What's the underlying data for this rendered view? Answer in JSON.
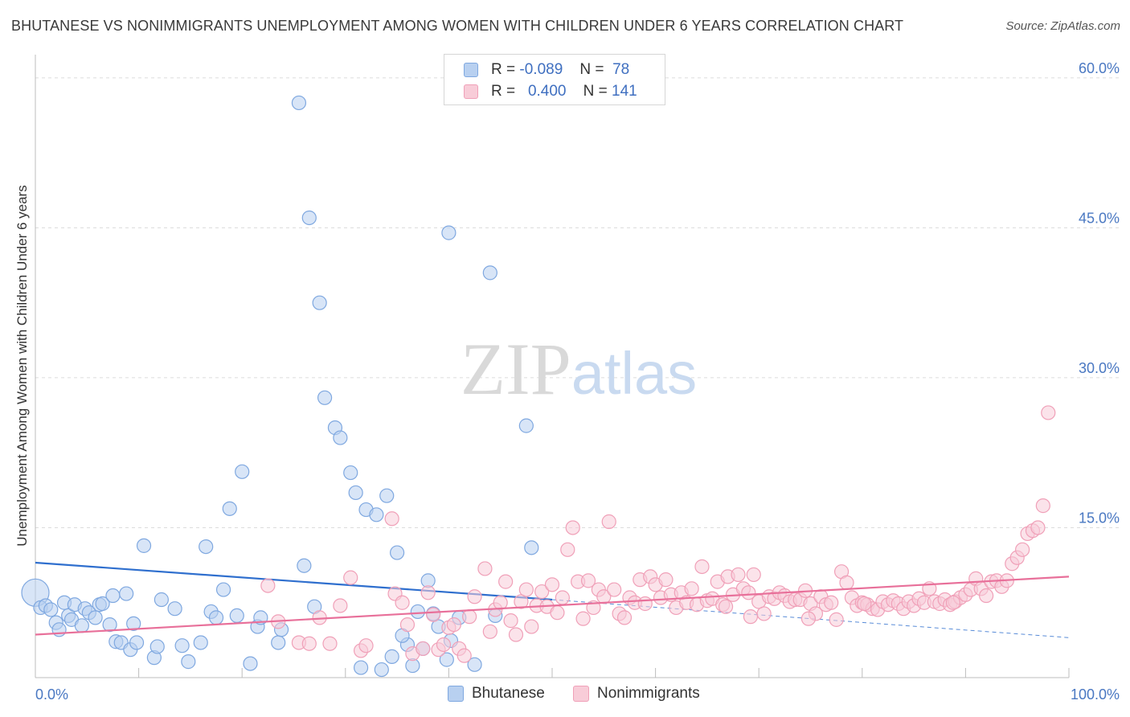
{
  "chart_data": {
    "type": "scatter",
    "title": "BHUTANESE VS NONIMMIGRANTS UNEMPLOYMENT AMONG WOMEN WITH CHILDREN UNDER 6 YEARS CORRELATION CHART",
    "source": "Source: ZipAtlas.com",
    "watermark": "ZIPatlas",
    "ylabel": "Unemployment Among Women with Children Under 6 years",
    "xlim": [
      0,
      100
    ],
    "ylim": [
      0,
      62
    ],
    "x_tick_labels": [
      "0.0%",
      "100.0%"
    ],
    "y_ticks": [
      15,
      30,
      45,
      60
    ],
    "y_tick_labels": [
      "15.0%",
      "30.0%",
      "45.0%",
      "60.0%"
    ],
    "grid": true,
    "legend": {
      "position": "top-center",
      "rows": [
        {
          "r_label": "R =",
          "r_value": "-0.089",
          "n_label": "N =",
          "n_value": "78"
        },
        {
          "r_label": "R =",
          "r_value": "0.400",
          "n_label": "N =",
          "n_value": "141"
        }
      ]
    },
    "series": [
      {
        "name": "Bhutanese",
        "color": "#7fa8e0",
        "fill": "#b8d0f0",
        "line_color": "#2f6fce",
        "trend": {
          "x0": 0,
          "y0": 11.5,
          "x1": 50,
          "y1": 7.8,
          "dash_to_x": 100,
          "dash_to_y": 4.0
        },
        "points": [
          [
            0,
            8.5
          ],
          [
            0.5,
            7.0
          ],
          [
            1.0,
            7.2
          ],
          [
            1.5,
            6.8
          ],
          [
            2.0,
            5.5
          ],
          [
            2.3,
            4.8
          ],
          [
            2.8,
            7.5
          ],
          [
            3.2,
            6.2
          ],
          [
            3.5,
            5.8
          ],
          [
            3.8,
            7.3
          ],
          [
            4.5,
            5.2
          ],
          [
            4.8,
            6.9
          ],
          [
            5.2,
            6.5
          ],
          [
            5.8,
            6.0
          ],
          [
            6.2,
            7.3
          ],
          [
            6.5,
            7.4
          ],
          [
            7.2,
            5.3
          ],
          [
            7.5,
            8.2
          ],
          [
            7.8,
            3.6
          ],
          [
            8.3,
            3.5
          ],
          [
            8.8,
            8.4
          ],
          [
            9.2,
            2.8
          ],
          [
            9.5,
            5.4
          ],
          [
            9.8,
            3.5
          ],
          [
            10.5,
            13.2
          ],
          [
            11.5,
            2.0
          ],
          [
            11.8,
            3.1
          ],
          [
            12.2,
            7.8
          ],
          [
            13.5,
            6.9
          ],
          [
            14.2,
            3.2
          ],
          [
            14.8,
            1.6
          ],
          [
            16.0,
            3.5
          ],
          [
            16.5,
            13.1
          ],
          [
            17.0,
            6.6
          ],
          [
            17.5,
            6.0
          ],
          [
            18.2,
            8.8
          ],
          [
            18.8,
            16.9
          ],
          [
            19.5,
            6.2
          ],
          [
            20.0,
            20.6
          ],
          [
            20.8,
            1.4
          ],
          [
            21.5,
            5.1
          ],
          [
            21.8,
            6.0
          ],
          [
            23.5,
            3.5
          ],
          [
            23.8,
            4.8
          ],
          [
            25.5,
            57.5
          ],
          [
            26.5,
            46.0
          ],
          [
            27.5,
            37.5
          ],
          [
            28.0,
            28.0
          ],
          [
            29.0,
            25.0
          ],
          [
            29.5,
            24.0
          ],
          [
            30.5,
            20.5
          ],
          [
            31.0,
            18.5
          ],
          [
            32.0,
            16.8
          ],
          [
            33.0,
            16.3
          ],
          [
            34.0,
            18.2
          ],
          [
            35.0,
            12.5
          ],
          [
            27.0,
            7.1
          ],
          [
            26.0,
            11.2
          ],
          [
            36.0,
            3.3
          ],
          [
            37.0,
            6.6
          ],
          [
            40.0,
            44.5
          ],
          [
            44.0,
            40.5
          ],
          [
            47.5,
            25.2
          ],
          [
            31.5,
            1.0
          ],
          [
            33.5,
            0.8
          ],
          [
            34.5,
            2.1
          ],
          [
            35.5,
            4.2
          ],
          [
            36.5,
            1.2
          ],
          [
            37.5,
            2.9
          ],
          [
            38.0,
            9.7
          ],
          [
            38.5,
            6.4
          ],
          [
            39.0,
            5.1
          ],
          [
            39.8,
            1.8
          ],
          [
            40.2,
            3.7
          ],
          [
            41.0,
            6.0
          ],
          [
            42.5,
            1.3
          ],
          [
            44.5,
            6.2
          ],
          [
            48.0,
            13.0
          ]
        ]
      },
      {
        "name": "Nonimmigrants",
        "color": "#f0a0b8",
        "fill": "#f8ccd8",
        "line_color": "#e8709a",
        "trend": {
          "x0": 0,
          "y0": 4.3,
          "x1": 100,
          "y1": 10.1
        },
        "points": [
          [
            22.5,
            9.2
          ],
          [
            23.5,
            5.6
          ],
          [
            25.5,
            3.5
          ],
          [
            26.5,
            3.4
          ],
          [
            27.5,
            6.0
          ],
          [
            28.5,
            3.4
          ],
          [
            29.5,
            7.2
          ],
          [
            30.5,
            10.0
          ],
          [
            31.5,
            2.7
          ],
          [
            32.0,
            3.2
          ],
          [
            34.5,
            15.9
          ],
          [
            34.8,
            8.4
          ],
          [
            35.5,
            7.5
          ],
          [
            36.0,
            5.3
          ],
          [
            36.5,
            2.4
          ],
          [
            37.5,
            2.9
          ],
          [
            38.0,
            8.5
          ],
          [
            38.5,
            6.3
          ],
          [
            39.0,
            2.8
          ],
          [
            39.5,
            3.3
          ],
          [
            40.0,
            5.0
          ],
          [
            40.5,
            5.3
          ],
          [
            41.0,
            2.9
          ],
          [
            41.5,
            2.2
          ],
          [
            42.0,
            6.1
          ],
          [
            42.5,
            8.1
          ],
          [
            43.5,
            10.9
          ],
          [
            44.0,
            4.6
          ],
          [
            44.5,
            6.8
          ],
          [
            45.0,
            7.5
          ],
          [
            45.5,
            9.6
          ],
          [
            46.0,
            5.7
          ],
          [
            46.5,
            4.3
          ],
          [
            47.0,
            7.6
          ],
          [
            47.5,
            8.8
          ],
          [
            48.0,
            5.1
          ],
          [
            48.5,
            7.2
          ],
          [
            49.0,
            8.6
          ],
          [
            49.5,
            7.1
          ],
          [
            50.0,
            9.3
          ],
          [
            50.5,
            6.5
          ],
          [
            51.0,
            8.0
          ],
          [
            51.5,
            12.8
          ],
          [
            52.0,
            15.0
          ],
          [
            52.5,
            9.6
          ],
          [
            53.0,
            5.9
          ],
          [
            53.5,
            9.7
          ],
          [
            54.0,
            7.0
          ],
          [
            54.5,
            8.8
          ],
          [
            55.0,
            8.1
          ],
          [
            55.5,
            15.6
          ],
          [
            56.0,
            8.8
          ],
          [
            56.5,
            6.4
          ],
          [
            57.0,
            6.0
          ],
          [
            57.5,
            8.0
          ],
          [
            58.0,
            7.5
          ],
          [
            58.5,
            9.8
          ],
          [
            59.0,
            7.4
          ],
          [
            59.5,
            10.1
          ],
          [
            60.0,
            9.3
          ],
          [
            60.5,
            8.0
          ],
          [
            61.0,
            9.8
          ],
          [
            61.5,
            8.3
          ],
          [
            62.0,
            7.0
          ],
          [
            62.5,
            8.5
          ],
          [
            63.0,
            7.5
          ],
          [
            63.5,
            8.9
          ],
          [
            64.0,
            7.3
          ],
          [
            64.5,
            11.1
          ],
          [
            65.0,
            7.7
          ],
          [
            65.5,
            7.9
          ],
          [
            66.0,
            9.6
          ],
          [
            66.5,
            7.3
          ],
          [
            67.0,
            10.1
          ],
          [
            67.5,
            8.3
          ],
          [
            68.0,
            10.3
          ],
          [
            68.5,
            8.9
          ],
          [
            69.0,
            8.5
          ],
          [
            69.5,
            10.3
          ],
          [
            70.0,
            7.6
          ],
          [
            70.5,
            6.4
          ],
          [
            71.0,
            8.1
          ],
          [
            71.5,
            7.9
          ],
          [
            72.0,
            8.5
          ],
          [
            72.5,
            8.2
          ],
          [
            73.0,
            7.6
          ],
          [
            73.5,
            7.8
          ],
          [
            74.0,
            7.8
          ],
          [
            74.5,
            8.7
          ],
          [
            75.0,
            7.4
          ],
          [
            75.5,
            6.4
          ],
          [
            76.0,
            8.1
          ],
          [
            76.5,
            7.3
          ],
          [
            77.0,
            7.5
          ],
          [
            77.5,
            5.8
          ],
          [
            78.0,
            10.6
          ],
          [
            78.5,
            9.5
          ],
          [
            79.0,
            8.0
          ],
          [
            79.5,
            7.2
          ],
          [
            80.0,
            7.5
          ],
          [
            80.5,
            7.3
          ],
          [
            81.0,
            6.9
          ],
          [
            81.5,
            6.8
          ],
          [
            82.0,
            7.6
          ],
          [
            82.5,
            7.3
          ],
          [
            83.0,
            7.7
          ],
          [
            83.5,
            7.4
          ],
          [
            84.0,
            6.9
          ],
          [
            84.5,
            7.6
          ],
          [
            85.0,
            7.2
          ],
          [
            85.5,
            7.9
          ],
          [
            86.0,
            7.5
          ],
          [
            86.5,
            8.9
          ],
          [
            87.0,
            7.6
          ],
          [
            87.5,
            7.4
          ],
          [
            88.0,
            7.8
          ],
          [
            88.5,
            7.3
          ],
          [
            89.0,
            7.6
          ],
          [
            89.5,
            8.0
          ],
          [
            90.0,
            8.3
          ],
          [
            90.5,
            8.8
          ],
          [
            91.0,
            9.9
          ],
          [
            91.5,
            8.9
          ],
          [
            92.0,
            8.2
          ],
          [
            92.5,
            9.6
          ],
          [
            93.0,
            9.7
          ],
          [
            93.5,
            9.1
          ],
          [
            94.0,
            9.7
          ],
          [
            94.5,
            11.4
          ],
          [
            95.0,
            12.0
          ],
          [
            95.5,
            12.8
          ],
          [
            96.0,
            14.4
          ],
          [
            96.5,
            14.7
          ],
          [
            97.0,
            15.0
          ],
          [
            97.5,
            17.2
          ],
          [
            98.0,
            26.5
          ],
          [
            66.8,
            7.1
          ],
          [
            69.2,
            6.1
          ],
          [
            74.8,
            5.9
          ],
          [
            80.2,
            7.4
          ],
          [
            88.8,
            7.5
          ]
        ]
      }
    ]
  }
}
